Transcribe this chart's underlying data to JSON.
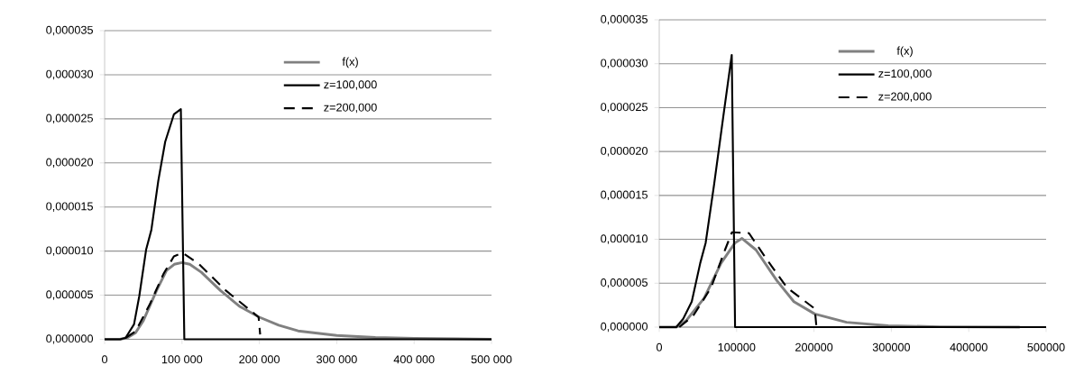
{
  "chart_data": [
    {
      "type": "line",
      "xlim": [
        0,
        500000
      ],
      "ylim": [
        0,
        3.5e-05
      ],
      "xticks": [
        0,
        {
          "value": 100000,
          "label": "100 000"
        },
        {
          "value": 200000,
          "label": "200 000"
        },
        {
          "value": 300000,
          "label": "300 000"
        },
        {
          "value": 400000,
          "label": "400 000"
        },
        {
          "value": 500000,
          "label": "500 000"
        }
      ],
      "yticks": [
        {
          "value": 0,
          "label": "0,000000"
        },
        {
          "value": 5e-06,
          "label": "0,000005"
        },
        {
          "value": 1e-05,
          "label": "0,000010"
        },
        {
          "value": 1.5e-05,
          "label": "0,000015"
        },
        {
          "value": 2e-05,
          "label": "0,000020"
        },
        {
          "value": 2.5e-05,
          "label": "0,000025"
        },
        {
          "value": 3e-05,
          "label": "0,000030"
        },
        {
          "value": 3.5e-05,
          "label": "0,000035"
        }
      ],
      "grid": "y",
      "legend": "top right",
      "series": [
        {
          "name": "f(x)",
          "color": "#808080",
          "line_style": "solid",
          "x": [
            0,
            20000,
            30000,
            40000,
            50000,
            67000,
            80000,
            90000,
            100000,
            110000,
            125000,
            150000,
            175000,
            200000,
            225000,
            250000,
            300000,
            350000,
            400000,
            500000
          ],
          "values": [
            0,
            0,
            2e-07,
            7.5e-07,
            2.1e-06,
            5.5e-06,
            7.8e-06,
            8.5e-06,
            8.7e-06,
            8.5e-06,
            7.6e-06,
            5.5e-06,
            3.7e-06,
            2.5e-06,
            1.6e-06,
            9.5e-07,
            4.3e-07,
            2e-07,
            1e-07,
            0
          ]
        },
        {
          "name": "z=100,000",
          "color": "#000000",
          "line_style": "solid",
          "x": [
            0,
            20000,
            27000,
            38000,
            44800,
            53700,
            60400,
            69400,
            78300,
            89500,
            98500,
            103000,
            500000
          ],
          "values": [
            0,
            0,
            1.5e-07,
            1.7e-06,
            4.9e-06,
            1.02e-05,
            1.24e-05,
            1.8e-05,
            2.24e-05,
            2.55e-05,
            2.61e-05,
            0,
            0
          ]
        },
        {
          "name": "z=200,000",
          "color": "#000000",
          "line_style": "dashed",
          "x": [
            27000,
            40000,
            58000,
            76000,
            89500,
            101000,
            121000,
            157000,
            188000,
            199000,
            201000
          ],
          "values": [
            1.5e-07,
            9e-07,
            3.9e-06,
            7.4e-06,
            9.4e-06,
            9.8e-06,
            8.6e-06,
            5.5e-06,
            3.3e-06,
            2.5e-06,
            5.5e-07
          ]
        }
      ]
    },
    {
      "type": "line",
      "xlim": [
        0,
        500000
      ],
      "ylim": [
        0,
        3.5e-05
      ],
      "xticks": [
        0,
        100000,
        200000,
        300000,
        400000,
        500000
      ],
      "yticks": [
        {
          "value": 0,
          "label": "0,000000"
        },
        {
          "value": 5e-06,
          "label": "0,000005"
        },
        {
          "value": 1e-05,
          "label": "0,000010"
        },
        {
          "value": 1.5e-05,
          "label": "0,000015"
        },
        {
          "value": 2e-05,
          "label": "0,000020"
        },
        {
          "value": 2.5e-05,
          "label": "0,000025"
        },
        {
          "value": 3e-05,
          "label": "0,000030"
        },
        {
          "value": 3.5e-05,
          "label": "0,000035"
        }
      ],
      "grid": "y",
      "legend": "top right",
      "series": [
        {
          "name": "f(x)",
          "color": "#808080",
          "line_style": "solid",
          "x": [
            0,
            22000,
            35000,
            58000,
            80000,
            98000,
            107000,
            125000,
            152000,
            174000,
            201000,
            242000,
            296000,
            363000,
            466000
          ],
          "values": [
            0,
            0,
            7.5e-07,
            3.3e-06,
            7.3e-06,
            9.6e-06,
            1.01e-05,
            8.8e-06,
            5.3e-06,
            2.9e-06,
            1.5e-06,
            5.5e-07,
            1.6e-07,
            4e-08,
            0
          ]
        },
        {
          "name": "z=100,000",
          "color": "#000000",
          "line_style": "solid",
          "x": [
            0,
            22000,
            31000,
            42000,
            53000,
            60000,
            71000,
            82500,
            93700,
            98000,
            500000
          ],
          "values": [
            0,
            0,
            9.5e-07,
            2.9e-06,
            7.3e-06,
            9.6e-06,
            1.63e-05,
            2.38e-05,
            3.1e-05,
            0,
            0
          ]
        },
        {
          "name": "z=200,000",
          "color": "#000000",
          "line_style": "dashed",
          "x": [
            26000,
            44000,
            67000,
            85000,
            94000,
            116000,
            139000,
            165000,
            201000,
            203000
          ],
          "values": [
            0,
            1.3e-06,
            4.5e-06,
            8.8e-06,
            1.08e-05,
            1.07e-05,
            7.7e-06,
            4.5e-06,
            2.1e-06,
            1.6e-07
          ]
        }
      ]
    }
  ]
}
